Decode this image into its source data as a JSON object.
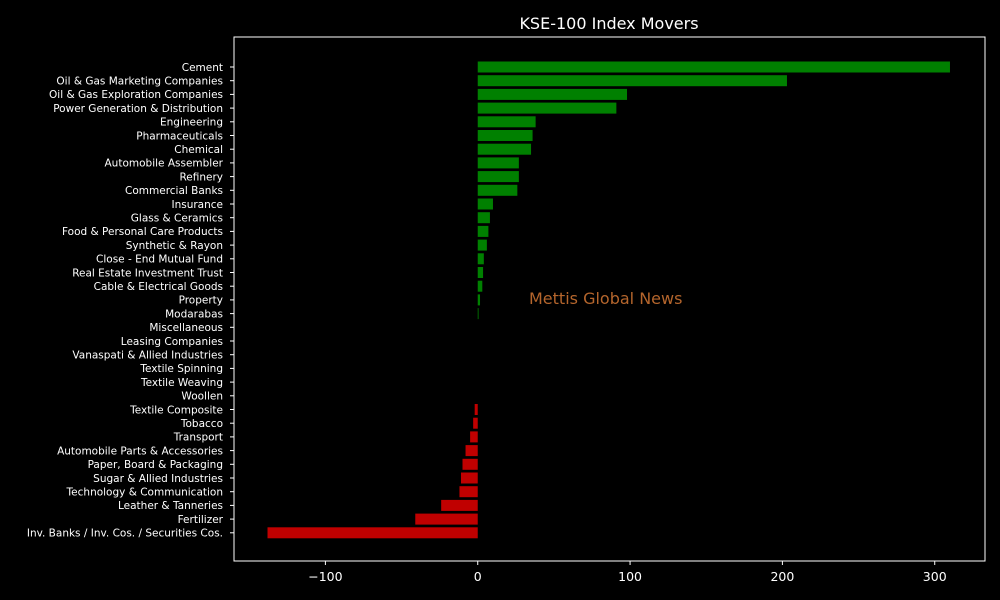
{
  "chart_data": {
    "type": "bar",
    "orientation": "horizontal",
    "title": "KSE-100 Index Movers",
    "xlabel": "",
    "ylabel": "",
    "xlim": [
      -160,
      333
    ],
    "x_ticks": [
      -100,
      0,
      100,
      200,
      300
    ],
    "x_tick_labels": [
      "−100",
      "0",
      "100",
      "200",
      "300"
    ],
    "grid": false,
    "legend": "none",
    "categories": [
      "Cement",
      "Oil & Gas Marketing Companies",
      "Oil & Gas Exploration Companies",
      "Power Generation & Distribution",
      "Engineering",
      "Pharmaceuticals",
      "Chemical",
      "Automobile Assembler",
      "Refinery",
      "Commercial Banks",
      "Insurance",
      "Glass & Ceramics",
      "Food & Personal Care Products",
      "Synthetic & Rayon",
      "Close - End Mutual Fund",
      "Real Estate Investment Trust",
      "Cable & Electrical Goods",
      "Property",
      "Modarabas",
      "Miscellaneous",
      "Leasing Companies",
      "Vanaspati & Allied Industries",
      "Textile Spinning",
      "Textile Weaving",
      "Woollen",
      "Textile Composite",
      "Tobacco",
      "Transport",
      "Automobile Parts & Accessories",
      "Paper, Board & Packaging",
      "Sugar & Allied Industries",
      "Technology & Communication",
      "Leather & Tanneries",
      "Fertilizer",
      "Inv. Banks / Inv. Cos. / Securities Cos."
    ],
    "values": [
      310,
      203,
      98,
      91,
      38,
      36,
      35,
      27,
      27,
      26,
      10,
      8,
      7,
      6,
      4,
      3.5,
      3,
      1.5,
      0.5,
      0,
      0,
      0,
      0,
      0,
      0,
      -2,
      -3,
      -5,
      -8,
      -10,
      -11,
      -12,
      -24,
      -41,
      -138
    ],
    "colors": {
      "positive": "#008000",
      "negative": "#c00000",
      "background": "#000000",
      "axes": "#ffffff",
      "text": "#ffffff"
    }
  },
  "watermark": {
    "text": "Mettis Global News",
    "color": "#b4652c"
  }
}
